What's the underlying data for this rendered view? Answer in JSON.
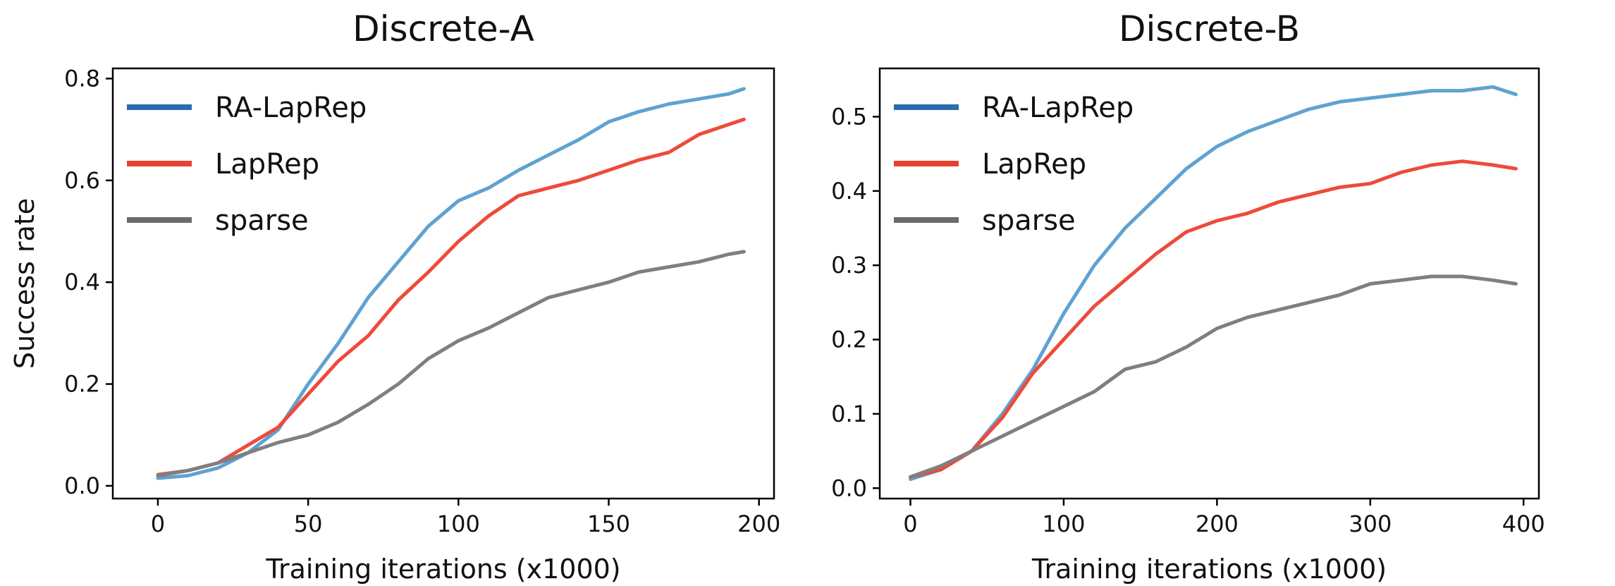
{
  "colors": {
    "RA-LapRep": "#5fa2d1",
    "LapRep": "#ee4a3b",
    "sparse": "#7f7f7f",
    "legend_RA-LapRep": "#2a6cae",
    "legend_LapRep": "#e8402f",
    "legend_sparse": "#6b6b6b"
  },
  "chart_data": [
    {
      "type": "line",
      "title": "Discrete-A",
      "xlabel": "Training iterations (x1000)",
      "ylabel": "Success rate",
      "xlim": [
        -15,
        205
      ],
      "ylim": [
        -0.025,
        0.82
      ],
      "xticks": [
        0,
        50,
        100,
        150,
        200
      ],
      "xtick_labels": [
        "0",
        "50",
        "100",
        "150",
        "200"
      ],
      "yticks": [
        0.0,
        0.2,
        0.4,
        0.6,
        0.8
      ],
      "ytick_labels": [
        "0.0",
        "0.2",
        "0.4",
        "0.6",
        "0.8"
      ],
      "legend_loc": "upper-left",
      "series": [
        {
          "name": "RA-LapRep",
          "x": [
            0,
            10,
            20,
            30,
            40,
            50,
            60,
            70,
            80,
            90,
            100,
            110,
            120,
            130,
            140,
            150,
            160,
            170,
            180,
            190,
            195
          ],
          "y": [
            0.015,
            0.02,
            0.035,
            0.065,
            0.11,
            0.2,
            0.28,
            0.37,
            0.44,
            0.51,
            0.56,
            0.585,
            0.62,
            0.65,
            0.68,
            0.715,
            0.735,
            0.75,
            0.76,
            0.77,
            0.78
          ]
        },
        {
          "name": "LapRep",
          "x": [
            0,
            10,
            20,
            30,
            40,
            50,
            60,
            70,
            80,
            90,
            100,
            110,
            120,
            130,
            140,
            150,
            160,
            170,
            180,
            190,
            195
          ],
          "y": [
            0.022,
            0.03,
            0.045,
            0.08,
            0.115,
            0.18,
            0.245,
            0.295,
            0.365,
            0.42,
            0.48,
            0.53,
            0.57,
            0.585,
            0.6,
            0.62,
            0.64,
            0.655,
            0.69,
            0.71,
            0.72
          ]
        },
        {
          "name": "sparse",
          "x": [
            0,
            10,
            20,
            30,
            40,
            50,
            60,
            70,
            80,
            90,
            100,
            110,
            120,
            130,
            140,
            150,
            160,
            170,
            180,
            190,
            195
          ],
          "y": [
            0.02,
            0.03,
            0.045,
            0.065,
            0.085,
            0.1,
            0.125,
            0.16,
            0.2,
            0.25,
            0.285,
            0.31,
            0.34,
            0.37,
            0.385,
            0.4,
            0.42,
            0.43,
            0.44,
            0.455,
            0.46
          ]
        }
      ]
    },
    {
      "type": "line",
      "title": "Discrete-B",
      "xlabel": "Training iterations (x1000)",
      "ylabel": "",
      "xlim": [
        -20,
        410
      ],
      "ylim": [
        -0.014,
        0.565
      ],
      "xticks": [
        0,
        100,
        200,
        300,
        400
      ],
      "xtick_labels": [
        "0",
        "100",
        "200",
        "300",
        "400"
      ],
      "yticks": [
        0.0,
        0.1,
        0.2,
        0.3,
        0.4,
        0.5
      ],
      "ytick_labels": [
        "0.0",
        "0.1",
        "0.2",
        "0.3",
        "0.4",
        "0.5"
      ],
      "legend_loc": "upper-left",
      "series": [
        {
          "name": "RA-LapRep",
          "x": [
            0,
            20,
            40,
            60,
            80,
            100,
            120,
            140,
            160,
            180,
            200,
            220,
            240,
            260,
            280,
            300,
            320,
            340,
            360,
            380,
            395
          ],
          "y": [
            0.012,
            0.025,
            0.05,
            0.1,
            0.16,
            0.235,
            0.3,
            0.35,
            0.39,
            0.43,
            0.46,
            0.48,
            0.495,
            0.51,
            0.52,
            0.525,
            0.53,
            0.535,
            0.535,
            0.54,
            0.53
          ]
        },
        {
          "name": "LapRep",
          "x": [
            0,
            20,
            40,
            60,
            80,
            100,
            120,
            140,
            160,
            180,
            200,
            220,
            240,
            260,
            280,
            300,
            320,
            340,
            360,
            380,
            395
          ],
          "y": [
            0.015,
            0.025,
            0.05,
            0.095,
            0.155,
            0.2,
            0.245,
            0.28,
            0.315,
            0.345,
            0.36,
            0.37,
            0.385,
            0.395,
            0.405,
            0.41,
            0.425,
            0.435,
            0.44,
            0.435,
            0.43
          ]
        },
        {
          "name": "sparse",
          "x": [
            0,
            20,
            40,
            60,
            80,
            100,
            120,
            140,
            160,
            180,
            200,
            220,
            240,
            260,
            280,
            300,
            320,
            340,
            360,
            380,
            395
          ],
          "y": [
            0.015,
            0.03,
            0.05,
            0.07,
            0.09,
            0.11,
            0.13,
            0.16,
            0.17,
            0.19,
            0.215,
            0.23,
            0.24,
            0.25,
            0.26,
            0.275,
            0.28,
            0.285,
            0.285,
            0.28,
            0.275
          ]
        }
      ]
    }
  ]
}
